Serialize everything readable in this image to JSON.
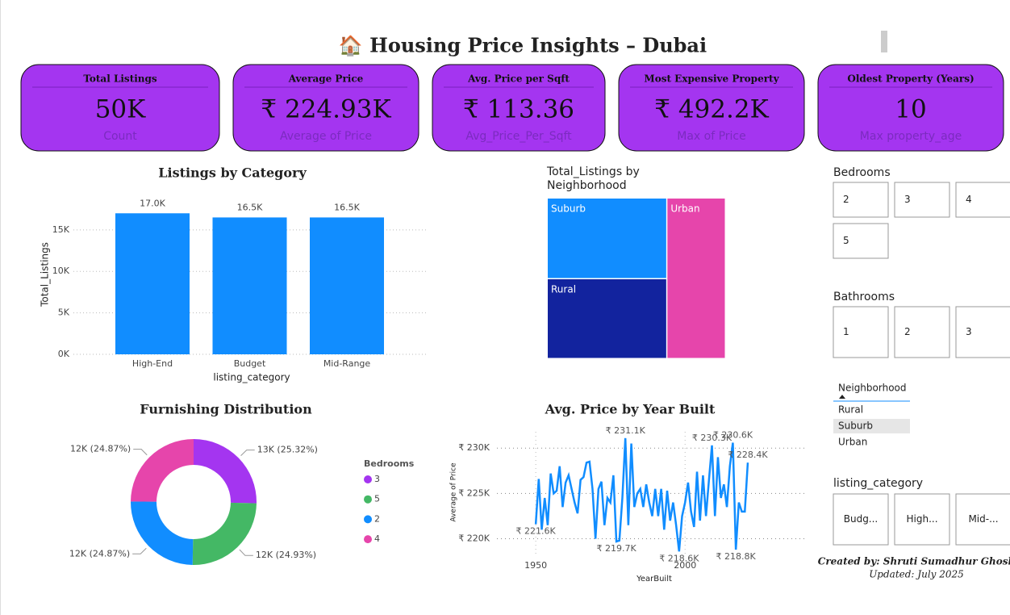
{
  "title": "🏠 Housing Price Insights – Dubai",
  "cards": [
    {
      "title": "Total Listings",
      "value": "50K",
      "label": "Count"
    },
    {
      "title": "Average Price",
      "value": "₹ 224.93K",
      "label": "Average of Price"
    },
    {
      "title": "Avg. Price per Sqft",
      "value": "₹ 113.36",
      "label": "Avg_Price_Per_Sqft"
    },
    {
      "title": "Most Expensive Property",
      "value": "₹ 492.2K",
      "label": "Max of Price"
    },
    {
      "title": "Oldest Property (Years)",
      "value": "10",
      "label": "Max property_age"
    }
  ],
  "slicers": {
    "bedrooms": {
      "title": "Bedrooms",
      "options": [
        "2",
        "3",
        "4",
        "5"
      ]
    },
    "bathrooms": {
      "title": "Bathrooms",
      "options": [
        "1",
        "2",
        "3"
      ]
    },
    "neighborhood": {
      "title": "Neighborhood",
      "options": [
        "Rural",
        "Suburb",
        "Urban"
      ],
      "selected": "Suburb"
    },
    "listing_category": {
      "title": "listing_category",
      "options": [
        "Budg...",
        "High...",
        "Mid-..."
      ]
    }
  },
  "footer": {
    "credit": "Created by: Shruti Sumadhur Ghosh",
    "updated": "Updated: July 2025"
  },
  "chart_data": [
    {
      "type": "bar",
      "title": "Listings by Category",
      "x_label": "listing_category",
      "y_label": "Total_Listings",
      "categories": [
        "High-End",
        "Budget",
        "Mid-Range"
      ],
      "values": [
        17000,
        16500,
        16500
      ],
      "value_labels": [
        "17.0K",
        "16.5K",
        "16.5K"
      ],
      "color": "#118dff",
      "ylim": [
        0,
        18000
      ],
      "yticks": [
        {
          "value": 0,
          "label": "0K"
        },
        {
          "value": 5000,
          "label": "5K"
        },
        {
          "value": 10000,
          "label": "10K"
        },
        {
          "value": 15000,
          "label": "15K"
        }
      ],
      "grid": true
    },
    {
      "type": "treemap",
      "title": "Total_Listings by Neighborhood",
      "categories": [
        "Suburb",
        "Rural",
        "Urban"
      ],
      "values": [
        16866,
        16694,
        16440
      ],
      "colors": [
        "#118dff",
        "#12239e",
        "#e645ab"
      ]
    },
    {
      "type": "donut",
      "title": "Furnishing Distribution",
      "legend_title": "Bedrooms",
      "categories": [
        "3",
        "5",
        "2",
        "4"
      ],
      "values": [
        25.32,
        24.93,
        24.87,
        24.87
      ],
      "value_labels": [
        "13K (25.32%)",
        "12K (24.93%)",
        "12K (24.87%)",
        "12K (24.87%)"
      ],
      "colors": [
        "#a435f0",
        "#44b865",
        "#118dff",
        "#e645ab"
      ]
    },
    {
      "type": "line",
      "title": "Avg. Price by Year Built",
      "x_label": "YearBuilt",
      "y_label": "Average of Price",
      "color": "#118dff",
      "x": [
        1950,
        1951,
        1952,
        1953,
        1954,
        1955,
        1956,
        1957,
        1958,
        1959,
        1960,
        1961,
        1962,
        1963,
        1964,
        1965,
        1966,
        1967,
        1968,
        1969,
        1970,
        1971,
        1972,
        1973,
        1974,
        1975,
        1976,
        1977,
        1978,
        1979,
        1980,
        1981,
        1982,
        1983,
        1984,
        1985,
        1986,
        1987,
        1988,
        1989,
        1990,
        1991,
        1992,
        1993,
        1994,
        1995,
        1996,
        1997,
        1998,
        1999,
        2000,
        2001,
        2002,
        2003,
        2004,
        2005,
        2006,
        2007,
        2008,
        2009,
        2010,
        2011,
        2012,
        2013,
        2014,
        2015,
        2016,
        2017,
        2018,
        2019,
        2020,
        2021
      ],
      "values": [
        221.6,
        226.6,
        221.0,
        224.5,
        221.5,
        227.2,
        225.0,
        225.3,
        228.0,
        223.5,
        226.2,
        227.0,
        225.5,
        224.0,
        222.8,
        226.5,
        226.8,
        228.4,
        228.5,
        225.5,
        220.0,
        225.5,
        226.3,
        221.5,
        224.5,
        224.0,
        227.0,
        219.7,
        219.8,
        224.5,
        231.1,
        221.5,
        230.5,
        223.5,
        225.0,
        225.5,
        223.5,
        226.0,
        224.0,
        222.5,
        225.5,
        222.5,
        225.5,
        221.0,
        225.3,
        222.0,
        224.0,
        221.5,
        218.6,
        222.5,
        224.0,
        226.2,
        223.0,
        221.3,
        227.4,
        222.0,
        227.0,
        222.5,
        226.5,
        230.3,
        222.5,
        229.0,
        224.5,
        226.0,
        223.5,
        228.0,
        230.6,
        218.8,
        224.0,
        223.0,
        223.0,
        228.4
      ],
      "value_labels": [
        "₹ 221.6K",
        null,
        null,
        null,
        null,
        null,
        null,
        null,
        null,
        null,
        null,
        null,
        null,
        null,
        null,
        null,
        null,
        null,
        null,
        null,
        null,
        null,
        null,
        null,
        null,
        null,
        null,
        "₹ 219.7K",
        null,
        null,
        "₹ 231.1K",
        null,
        null,
        null,
        null,
        null,
        null,
        null,
        null,
        null,
        null,
        null,
        null,
        null,
        null,
        null,
        null,
        null,
        "₹ 218.6K",
        null,
        null,
        null,
        null,
        null,
        null,
        null,
        null,
        null,
        null,
        "₹ 230.3K",
        null,
        null,
        null,
        null,
        null,
        null,
        "₹ 230.6K",
        "₹ 218.8K",
        null,
        null,
        null,
        "₹ 228.4K"
      ],
      "xlim": [
        1937,
        2041
      ],
      "xticks": [
        1950,
        2000
      ],
      "ylim": [
        218,
        231.8
      ],
      "yticks": [
        {
          "value": 220,
          "label": "₹ 220K"
        },
        {
          "value": 225,
          "label": "₹ 225K"
        },
        {
          "value": 230,
          "label": "₹ 230K"
        }
      ],
      "grid": true
    }
  ]
}
